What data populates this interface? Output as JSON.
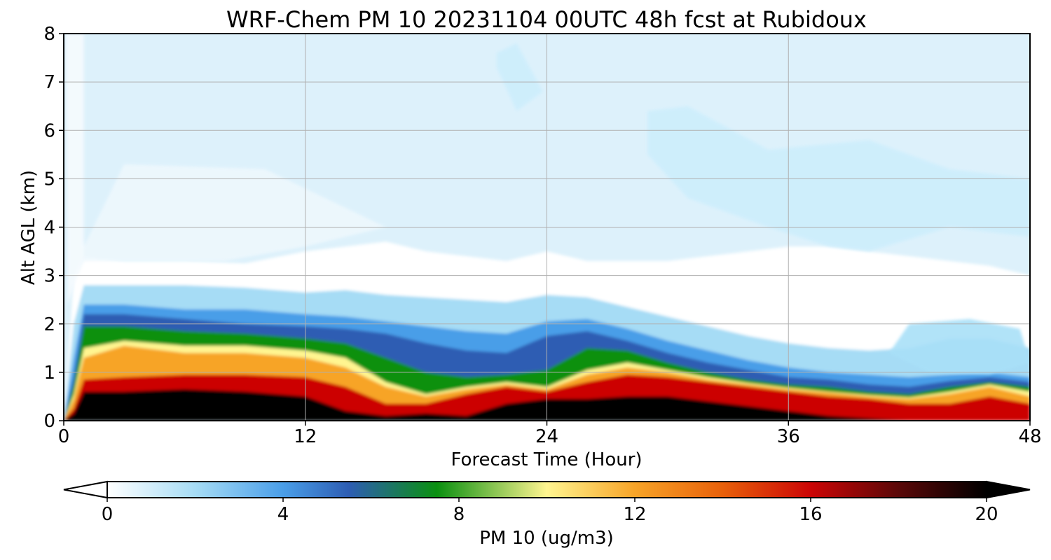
{
  "chart_data": {
    "type": "heatmap",
    "subtype": "time-height filled contour",
    "title": "WRF-Chem PM 10  20231104 00UTC 48h fcst at Rubidoux",
    "xlabel": "Forecast Time (Hour)",
    "ylabel": "Alt AGL (km)",
    "xlim": [
      0,
      48
    ],
    "ylim": [
      0,
      8
    ],
    "x_ticks": [
      "0",
      "12",
      "24",
      "36",
      "48"
    ],
    "y_ticks": [
      "0",
      "1",
      "2",
      "3",
      "4",
      "5",
      "6",
      "7",
      "8"
    ],
    "grid": true,
    "colorbar": {
      "label": "PM 10  (ug/m3)",
      "range": [
        0,
        20
      ],
      "ticks": [
        "0",
        "4",
        "8",
        "12",
        "16",
        "20"
      ],
      "extend": "both",
      "colors": {
        "0": "#ffffff",
        "2": "#a6dcf5",
        "4": "#4a9ee8",
        "5.5": "#2d5db3",
        "7.5": "#0a9010",
        "10": "#fff590",
        "12": "#f7a428",
        "14": "#e8600a",
        "16": "#cc0505",
        "18": "#5a0808",
        "20": "#000000"
      }
    },
    "x_hours": [
      0,
      0.5,
      1,
      3,
      6,
      9,
      12,
      14,
      16,
      18,
      20,
      22,
      24,
      26,
      28,
      30,
      32,
      34,
      36,
      38,
      40,
      42,
      44,
      46,
      48
    ],
    "surface_layer": {
      "description": "altitude (km) reached by each concentration level vs forecast hour",
      "z_ge_18": [
        0,
        0.15,
        0.6,
        0.6,
        0.65,
        0.6,
        0.5,
        0.2,
        0.1,
        0.15,
        0.1,
        0.35,
        0.45,
        0.45,
        0.5,
        0.5,
        0.4,
        0.3,
        0.2,
        0.1,
        0.05,
        0.0,
        0.0,
        0.0,
        0.0
      ],
      "z_ge_16": [
        0,
        0.25,
        0.85,
        0.9,
        0.95,
        0.95,
        0.9,
        0.7,
        0.35,
        0.35,
        0.55,
        0.7,
        0.6,
        0.8,
        0.95,
        0.9,
        0.8,
        0.7,
        0.6,
        0.5,
        0.45,
        0.35,
        0.35,
        0.5,
        0.35
      ],
      "z_ge_12": [
        0,
        0.45,
        1.3,
        1.55,
        1.4,
        1.4,
        1.3,
        1.1,
        0.7,
        0.5,
        0.65,
        0.75,
        0.65,
        0.95,
        1.1,
        1.0,
        0.85,
        0.75,
        0.65,
        0.58,
        0.5,
        0.45,
        0.55,
        0.7,
        0.5
      ],
      "z_ge_10": [
        0,
        0.55,
        1.5,
        1.65,
        1.55,
        1.55,
        1.45,
        1.3,
        0.8,
        0.55,
        0.7,
        0.8,
        0.7,
        1.05,
        1.2,
        1.05,
        0.9,
        0.78,
        0.68,
        0.6,
        0.53,
        0.48,
        0.6,
        0.75,
        0.6
      ],
      "z_ge_8": [
        0,
        0.75,
        1.95,
        1.95,
        1.85,
        1.8,
        1.7,
        1.6,
        1.3,
        1.0,
        0.9,
        0.95,
        1.05,
        1.5,
        1.45,
        1.2,
        1.0,
        0.85,
        0.75,
        0.7,
        0.6,
        0.55,
        0.7,
        0.8,
        0.7
      ],
      "z_ge_5_5": [
        0,
        0.9,
        2.2,
        2.2,
        2.1,
        2.0,
        1.95,
        1.9,
        1.8,
        1.6,
        1.45,
        1.4,
        1.75,
        1.85,
        1.65,
        1.4,
        1.2,
        1.05,
        0.9,
        0.85,
        0.75,
        0.7,
        0.82,
        0.9,
        0.8
      ],
      "z_ge_4": [
        0,
        1.3,
        2.4,
        2.4,
        2.3,
        2.3,
        2.2,
        2.15,
        2.05,
        1.95,
        1.85,
        1.8,
        2.05,
        2.1,
        1.9,
        1.65,
        1.45,
        1.25,
        1.1,
        1.0,
        0.95,
        0.9,
        0.95,
        1.0,
        0.9
      ],
      "z_ge_2": [
        0,
        2.0,
        2.8,
        2.8,
        2.8,
        2.75,
        2.65,
        2.7,
        2.6,
        2.55,
        2.5,
        2.45,
        2.6,
        2.55,
        2.35,
        2.15,
        1.95,
        1.75,
        1.6,
        1.5,
        1.45,
        1.5,
        1.7,
        1.7,
        1.5
      ],
      "z_ge_1": [
        0,
        3.0,
        3.4,
        3.3,
        3.3,
        3.25,
        3.5,
        3.6,
        3.7,
        3.5,
        3.4,
        3.3,
        3.5,
        3.3,
        3.3,
        3.3,
        3.4,
        3.5,
        3.6,
        3.6,
        3.5,
        3.4,
        3.3,
        3.2,
        3.0
      ]
    },
    "upper_features": [
      {
        "level_ugm3": 0.5,
        "region": "clean air aloft, hours 0-16, 3.5-5.3 km"
      },
      {
        "level_ugm3": 1.5,
        "region": "hours 20-23, 6.4-7.8 km"
      },
      {
        "level_ugm3": 1.5,
        "region": "hours 29-48, 4-6.5 km"
      },
      {
        "level_ugm3": 2.5,
        "region": "hours 44-48, 1-2 km"
      }
    ]
  }
}
